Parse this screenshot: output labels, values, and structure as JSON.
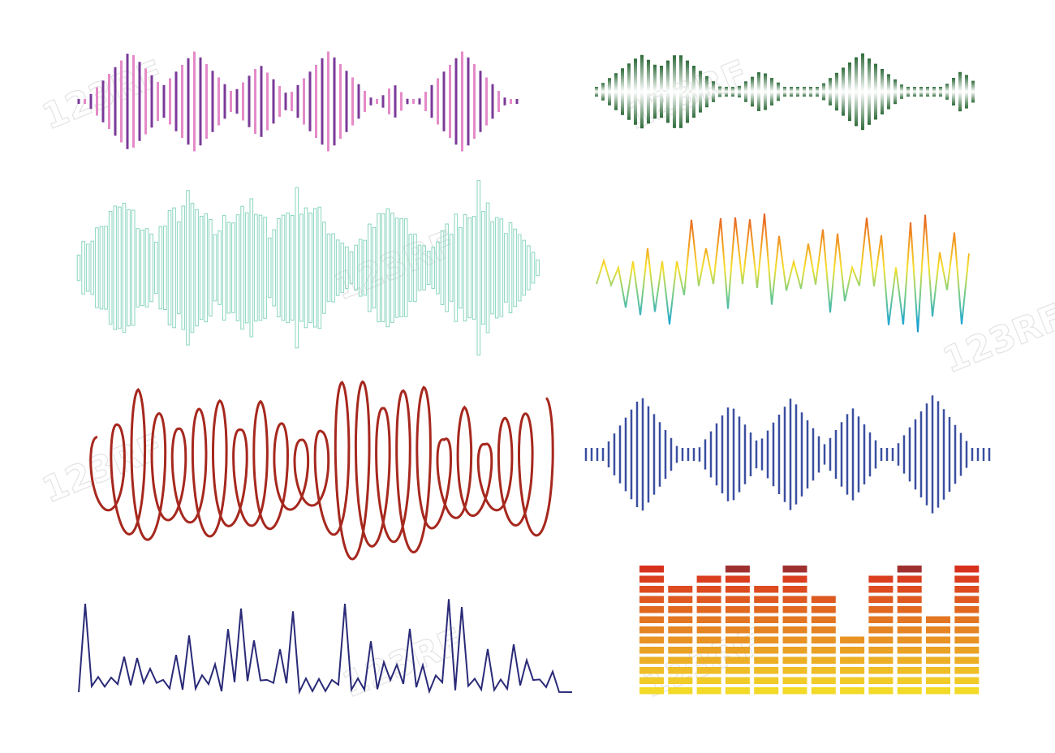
{
  "watermark": "123RF"
}
